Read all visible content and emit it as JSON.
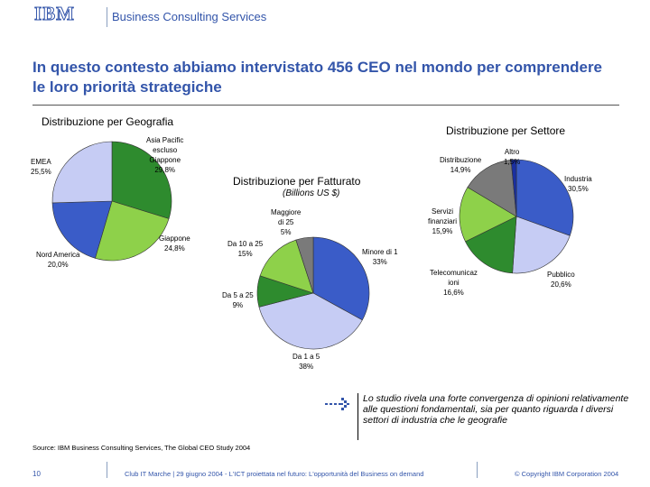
{
  "header": {
    "logo_text": "IBM",
    "subtitle": "Business Consulting Services"
  },
  "slide": {
    "title": "In questo contesto abbiamo intervistato 456 CEO nel mondo per comprendere le loro priorità strategiche"
  },
  "chart_data": [
    {
      "type": "pie",
      "title": "Distribuzione per Geografia",
      "slices": [
        {
          "label": "Asia Pacific escluso Giappone",
          "value": 29.8,
          "value_label": "29,8%",
          "color": "#2e8b2e"
        },
        {
          "label": "Giappone",
          "value": 24.8,
          "value_label": "24,8%",
          "color": "#8ed14a"
        },
        {
          "label": "Nord America",
          "value": 20.0,
          "value_label": "20,0%",
          "color": "#3a5cc8"
        },
        {
          "label": "EMEA",
          "value": 25.5,
          "value_label": "25,5%",
          "color": "#c6ccf4"
        }
      ]
    },
    {
      "type": "pie",
      "title": "Distribuzione per Fatturato",
      "subtitle": "(Billions US $)",
      "slices": [
        {
          "label": "Minore di 1",
          "value": 33,
          "value_label": "33%",
          "color": "#3a5cc8"
        },
        {
          "label": "Da 1 a 5",
          "value": 38,
          "value_label": "38%",
          "color": "#c6ccf4"
        },
        {
          "label": "Da 5 a 25",
          "value": 9,
          "value_label": "9%",
          "color": "#2e8b2e"
        },
        {
          "label": "Da 10 a 25",
          "value": 15,
          "value_label": "15%",
          "color": "#8ed14a"
        },
        {
          "label": "Maggiore di 25",
          "value": 5,
          "value_label": "5%",
          "color": "#7a7a7a"
        }
      ]
    },
    {
      "type": "pie",
      "title": "Distribuzione per Settore",
      "slices": [
        {
          "label": "Industria",
          "value": 30.5,
          "value_label": "30,5%",
          "color": "#3a5cc8"
        },
        {
          "label": "Pubblico",
          "value": 20.6,
          "value_label": "20,6%",
          "color": "#c6ccf4"
        },
        {
          "label": "Telecomunicazioni",
          "value": 16.6,
          "value_label": "16,6%",
          "color": "#2e8b2e"
        },
        {
          "label": "Servizi finanziari",
          "value": 15.9,
          "value_label": "15,9%",
          "color": "#8ed14a"
        },
        {
          "label": "Distribuzione",
          "value": 14.9,
          "value_label": "14,9%",
          "color": "#7a7a7a"
        },
        {
          "label": "Altro",
          "value": 1.5,
          "value_label": "1,5%",
          "color": "#1a2fa0"
        }
      ]
    }
  ],
  "labels": {
    "geo_asia": [
      "Asia Pacific",
      "escluso",
      "Giappone"
    ],
    "geo_asia_pct": "29,8%",
    "geo_emea": "EMEA",
    "geo_emea_pct": "25,5%",
    "geo_japan": "Giappone",
    "geo_japan_pct": "24,8%",
    "geo_na": "Nord America",
    "geo_na_pct": "20,0%",
    "rev_gt25": [
      "Maggiore",
      "di 25"
    ],
    "rev_gt25_pct": "5%",
    "rev_10_25": "Da 10 a 25",
    "rev_10_25_pct": "15%",
    "rev_lt1": "Minore di 1",
    "rev_lt1_pct": "33%",
    "rev_5_25": "Da 5 a 25",
    "rev_5_25_pct": "9%",
    "rev_1_5": "Da 1 a 5",
    "rev_1_5_pct": "38%",
    "sec_distr": "Distribuzione",
    "sec_distr_pct": "14,9%",
    "sec_altro": "Altro",
    "sec_altro_pct": "1,5%",
    "sec_ind": "Industria",
    "sec_ind_pct": "30,5%",
    "sec_fin": [
      "Servizi",
      "finanziari"
    ],
    "sec_fin_pct": "15,9%",
    "sec_tel": [
      "Telecomunicaz",
      "ioni"
    ],
    "sec_tel_pct": "16,6%",
    "sec_pub": "Pubblico",
    "sec_pub_pct": "20,6%"
  },
  "note": "Lo studio rivela una forte convergenza di opinioni relativamente alle questioni fondamentali, sia per quanto riguarda I diversi settori di industria che le geografie",
  "source": "Source: IBM Business Consulting Services, The Global CEO Study 2004",
  "footer": {
    "page": "10",
    "event": "Club IT Marche | 29 giugno 2004 - L'ICT proiettata nel futuro: L'opportunità del Business on demand",
    "copyright": "© Copyright IBM Corporation 2004"
  }
}
